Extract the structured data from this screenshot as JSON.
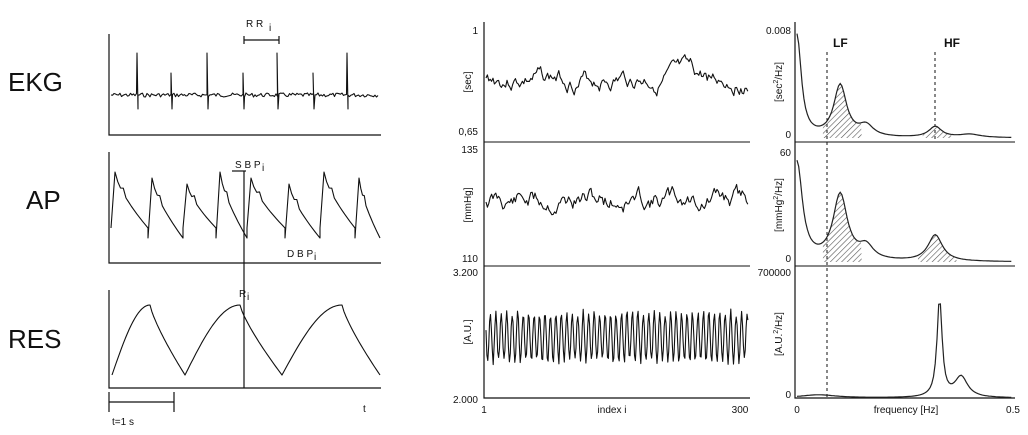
{
  "chart_data": [
    {
      "type": "line",
      "panel": "raw-signals",
      "rows": [
        {
          "label": "EKG",
          "annotation": "R R",
          "annotation_sub": "i"
        },
        {
          "label": "AP",
          "annotation_top": "S B P",
          "annotation_top_sub": "i",
          "annotation_bottom": "D B P",
          "annotation_bottom_sub": "i"
        },
        {
          "label": "RES",
          "annotation": "R",
          "annotation_sub": "i"
        }
      ],
      "time_scale_label": "t=1 s",
      "xlabel": "t"
    },
    {
      "type": "line",
      "panel": "beat-to-beat-series",
      "xlabel": "index i",
      "x_ticks": [
        "1",
        "300"
      ],
      "rows": [
        {
          "ylabel": "[sec]",
          "ylim": [
            0.65,
            1
          ],
          "ytick_top": "1",
          "ytick_bottom": "0,65"
        },
        {
          "ylabel": "[mmHg]",
          "ylim": [
            110,
            135
          ],
          "ytick_top": "135",
          "ytick_bottom": "110"
        },
        {
          "ylabel": "[A.U.]",
          "ylim": [
            2.0,
            3.2
          ],
          "ytick_top": "3.200",
          "ytick_bottom": "2.000"
        }
      ]
    },
    {
      "type": "area",
      "panel": "power-spectra",
      "xlabel": "frequency [Hz]",
      "x_ticks": [
        "0",
        "0.5"
      ],
      "xlim": [
        0,
        0.5
      ],
      "bands": [
        {
          "name": "LF",
          "freq": 0.1
        },
        {
          "name": "HF",
          "freq": 0.32
        }
      ],
      "rows": [
        {
          "ylabel": "[sec",
          "ylabel_sup": "2",
          "ylabel_end": "/Hz]",
          "ytick_top": "0.008",
          "ytick_bottom": "0",
          "ylim": [
            0,
            0.008
          ],
          "peaks": [
            {
              "freq": 0.1,
              "value": 0.0045
            },
            {
              "freq": 0.32,
              "value": 0.0008
            }
          ]
        },
        {
          "ylabel": "[mmHg",
          "ylabel_sup": "2",
          "ylabel_end": "/Hz]",
          "ytick_top": "60",
          "ytick_bottom": "0",
          "ylim": [
            0,
            60
          ],
          "peaks": [
            {
              "freq": 0.1,
              "value": 42
            },
            {
              "freq": 0.32,
              "value": 16
            }
          ]
        },
        {
          "ylabel": "[A.U.",
          "ylabel_sup": "2",
          "ylabel_end": "/Hz]",
          "ytick_top": "700000",
          "ytick_bottom": "0",
          "ylim": [
            0,
            700000
          ],
          "peaks": [
            {
              "freq": 0.33,
              "value": 690000
            },
            {
              "freq": 0.38,
              "value": 150000
            }
          ]
        }
      ]
    }
  ]
}
